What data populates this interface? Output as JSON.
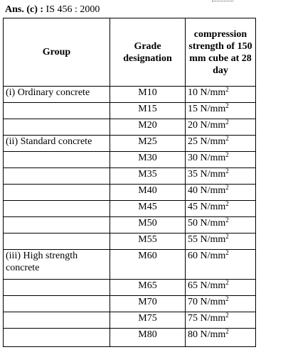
{
  "answer": {
    "label": "Ans. (c) :",
    "text": "IS 456 : 2000"
  },
  "table": {
    "headers": {
      "group": "Group",
      "grade": "Grade designation",
      "strength": "compression strength of 150 mm cube at 28 day"
    },
    "unit_base": "N/mm",
    "unit_sup": "2",
    "rows": [
      {
        "group": "(i) Ordinary concrete",
        "grade": "M10",
        "value": "10"
      },
      {
        "group": "",
        "grade": "M15",
        "value": "15"
      },
      {
        "group": "",
        "grade": "M20",
        "value": "20"
      },
      {
        "group": "(ii) Standard concrete",
        "grade": "M25",
        "value": "25"
      },
      {
        "group": "",
        "grade": "M30",
        "value": "30"
      },
      {
        "group": "",
        "grade": "M35",
        "value": "35"
      },
      {
        "group": "",
        "grade": "M40",
        "value": "40"
      },
      {
        "group": "",
        "grade": "M45",
        "value": "45"
      },
      {
        "group": "",
        "grade": "M50",
        "value": "50"
      },
      {
        "group": "",
        "grade": "M55",
        "value": "55"
      },
      {
        "group": "(iii) High strength concrete",
        "grade": "M60",
        "value": "60"
      },
      {
        "group": "",
        "grade": "M65",
        "value": "65"
      },
      {
        "group": "",
        "grade": "M70",
        "value": "70"
      },
      {
        "group": "",
        "grade": "M75",
        "value": "75"
      },
      {
        "group": "",
        "grade": "M80",
        "value": "80"
      }
    ]
  }
}
